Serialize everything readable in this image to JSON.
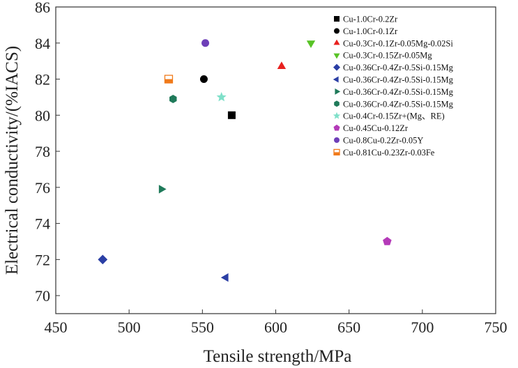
{
  "chart_data": {
    "type": "scatter",
    "title": "",
    "xlabel": "Tensile strength/MPa",
    "ylabel": "Electrical conductivity/(%IACS)",
    "xlim": [
      450,
      750
    ],
    "ylim": [
      69,
      86
    ],
    "xticks": [
      450,
      500,
      550,
      600,
      650,
      700,
      750
    ],
    "yticks": [
      70,
      72,
      74,
      76,
      78,
      80,
      82,
      84,
      86
    ],
    "grid": false,
    "legend_position": "top-right",
    "series": [
      {
        "name": "Cu-1.0Cr-0.2Zr",
        "marker": "square",
        "color": "#000000",
        "x": [
          570
        ],
        "y": [
          80
        ]
      },
      {
        "name": "Cu-1.0Cr-0.1Zr",
        "marker": "circle",
        "color": "#000000",
        "x": [
          551
        ],
        "y": [
          82
        ]
      },
      {
        "name": "Cu-0.3Cr-0.1Zr-0.05Mg-0.02Si",
        "marker": "triangle-up",
        "color": "#e8211f",
        "x": [
          604
        ],
        "y": [
          82.7
        ]
      },
      {
        "name": "Cu-0.3Cr-0.15Zr-0.05Mg",
        "marker": "triangle-down",
        "color": "#58c326",
        "x": [
          624
        ],
        "y": [
          84
        ]
      },
      {
        "name": "Cu-0.36Cr-0.4Zr-0.5Si-0.15Mg",
        "marker": "diamond",
        "color": "#2b3fa5",
        "x": [
          482
        ],
        "y": [
          72
        ]
      },
      {
        "name": "Cu-0.36Cr-0.4Zr-0.5Si-0.15Mg",
        "marker": "triangle-left",
        "color": "#2b3fa5",
        "x": [
          566
        ],
        "y": [
          71
        ]
      },
      {
        "name": "Cu-0.36Cr-0.4Zr-0.5Si-0.15Mg",
        "marker": "triangle-right",
        "color": "#1f7a5a",
        "x": [
          522
        ],
        "y": [
          75.9
        ]
      },
      {
        "name": "Cu-0.36Cr-0.4Zr-0.5Si-0.15Mg",
        "marker": "hexagon",
        "color": "#1f7a5a",
        "x": [
          530
        ],
        "y": [
          80.9
        ]
      },
      {
        "name": "Cu-0.4Cr-0.15Zr+(Mg、RE)",
        "marker": "star",
        "color": "#7fe0c9",
        "x": [
          563
        ],
        "y": [
          81
        ]
      },
      {
        "name": "Cu-0.45Cu-0.12Zr",
        "marker": "pentagon",
        "color": "#b43ab8",
        "x": [
          676
        ],
        "y": [
          73
        ]
      },
      {
        "name": "Cu-0.8Cu-0.2Zr-0.05Y",
        "marker": "circle",
        "color": "#6e3fb8",
        "x": [
          552
        ],
        "y": [
          84
        ]
      },
      {
        "name": "Cu-0.81Cu-0.23Zr-0.03Fe",
        "marker": "half-square",
        "color": "#f07a1a",
        "x": [
          527
        ],
        "y": [
          82
        ]
      }
    ]
  }
}
